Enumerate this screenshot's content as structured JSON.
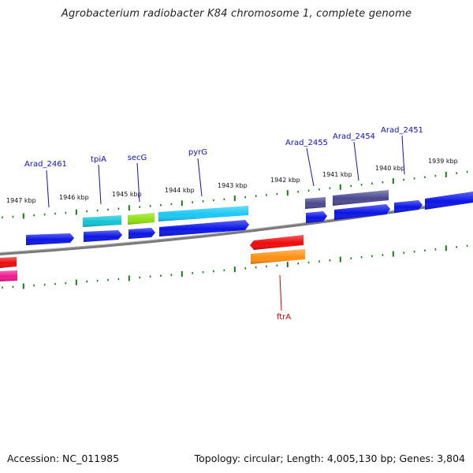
{
  "title": "Agrobacterium radiobacter K84 chromosome 1, complete genome",
  "footer": {
    "accession": "Accession: NC_011985",
    "topology": "Topology: circular; Length: 4,005,130 bp; Genes: 3,804"
  },
  "ruler_labels": [
    "1947 kbp",
    "1946 kbp",
    "1945 kbp",
    "1944 kbp",
    "1943 kbp",
    "1942 kbp",
    "1941 kbp",
    "1940 kbp",
    "1939 kbp"
  ],
  "gene_labels": {
    "outer": [
      "Arad_2461",
      "tpiA",
      "secG",
      "pyrG",
      "Arad_2455",
      "Arad_2454",
      "Arad_2451"
    ],
    "inner": [
      "ftrA"
    ]
  },
  "colors": {
    "backbone": "#808080",
    "tick": "#1a7a1a",
    "outer_label": "#1010c0",
    "inner_label": "#d00000",
    "blue": "#0a14e6",
    "cyan": "#10c8d8",
    "lime": "#8ee010",
    "sky": "#18c8f5",
    "slate": "#4a4890",
    "red": "#ee0a0a",
    "orange": "#ff9010",
    "pink": "#f01890"
  }
}
